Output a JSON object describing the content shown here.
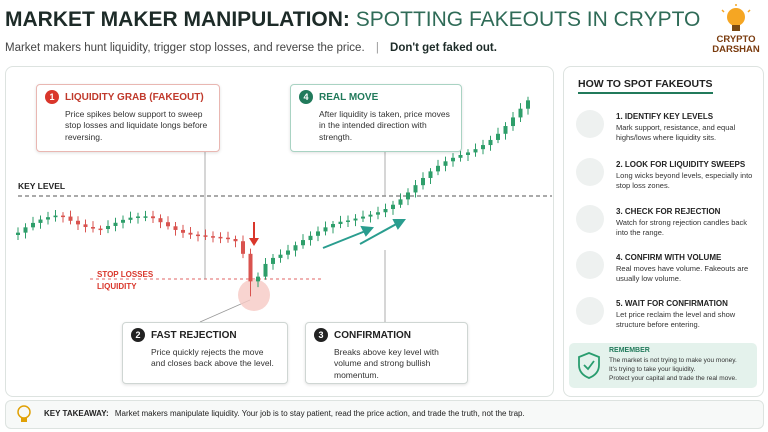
{
  "header": {
    "title": "MARKET MAKER MANIPULATION:",
    "title_accent": "SPOTTING FAKEOUTS IN CRYPTO",
    "subtitle": "Market makers hunt liquidity, trigger stop losses, and reverse the price.",
    "subtitle_emphasis": "Don't get faked out."
  },
  "logo": {
    "line1": "CRYPTO",
    "line2": "DARSHAN"
  },
  "chart": {
    "key_level": "KEY LEVEL",
    "stop_losses": "STOP LOSSES",
    "liquidity": "LIQUIDITY",
    "callouts": [
      {
        "number": "1",
        "title": "LIQUIDITY GRAB (FAKEOUT)",
        "text": "Price spikes below support to sweep stop losses and liquidate longs before reversing."
      },
      {
        "number": "4",
        "title": "REAL MOVE",
        "text": "After liquidity is taken, price moves in the intended direction with strength."
      },
      {
        "number": "2",
        "title": "FAST REJECTION",
        "text": "Price quickly rejects the move and closes back above the level."
      },
      {
        "number": "3",
        "title": "CONFIRMATION",
        "text": "Breaks above key level with volume and strong bullish momentum."
      }
    ]
  },
  "tips": {
    "title": "HOW TO SPOT FAKEOUTS",
    "items": [
      {
        "title": "1. IDENTIFY KEY LEVELS",
        "text": "Mark support, resistance, and equal highs/lows where liquidity sits."
      },
      {
        "title": "2. LOOK FOR LIQUIDITY SWEEPS",
        "text": "Long wicks beyond levels, especially into stop loss zones."
      },
      {
        "title": "3. CHECK FOR REJECTION",
        "text": "Watch for strong rejection candles back into the range."
      },
      {
        "title": "4. CONFIRM WITH VOLUME",
        "text": "Real moves have volume. Fakeouts are usually low volume."
      },
      {
        "title": "5. WAIT FOR CONFIRMATION",
        "text": "Let price reclaim the level and show structure before entering."
      }
    ],
    "remember": {
      "title": "REMEMBER",
      "lines": [
        "The market is not trying to make you money.",
        "It's trying to take your liquidity.",
        "Protect your capital and trade the real move."
      ]
    }
  },
  "takeaway": {
    "label": "KEY TAKEAWAY:",
    "text": "Market makers manipulate liquidity. Your job is to stay patient, read the price action, and trade the truth, not the trap."
  }
}
